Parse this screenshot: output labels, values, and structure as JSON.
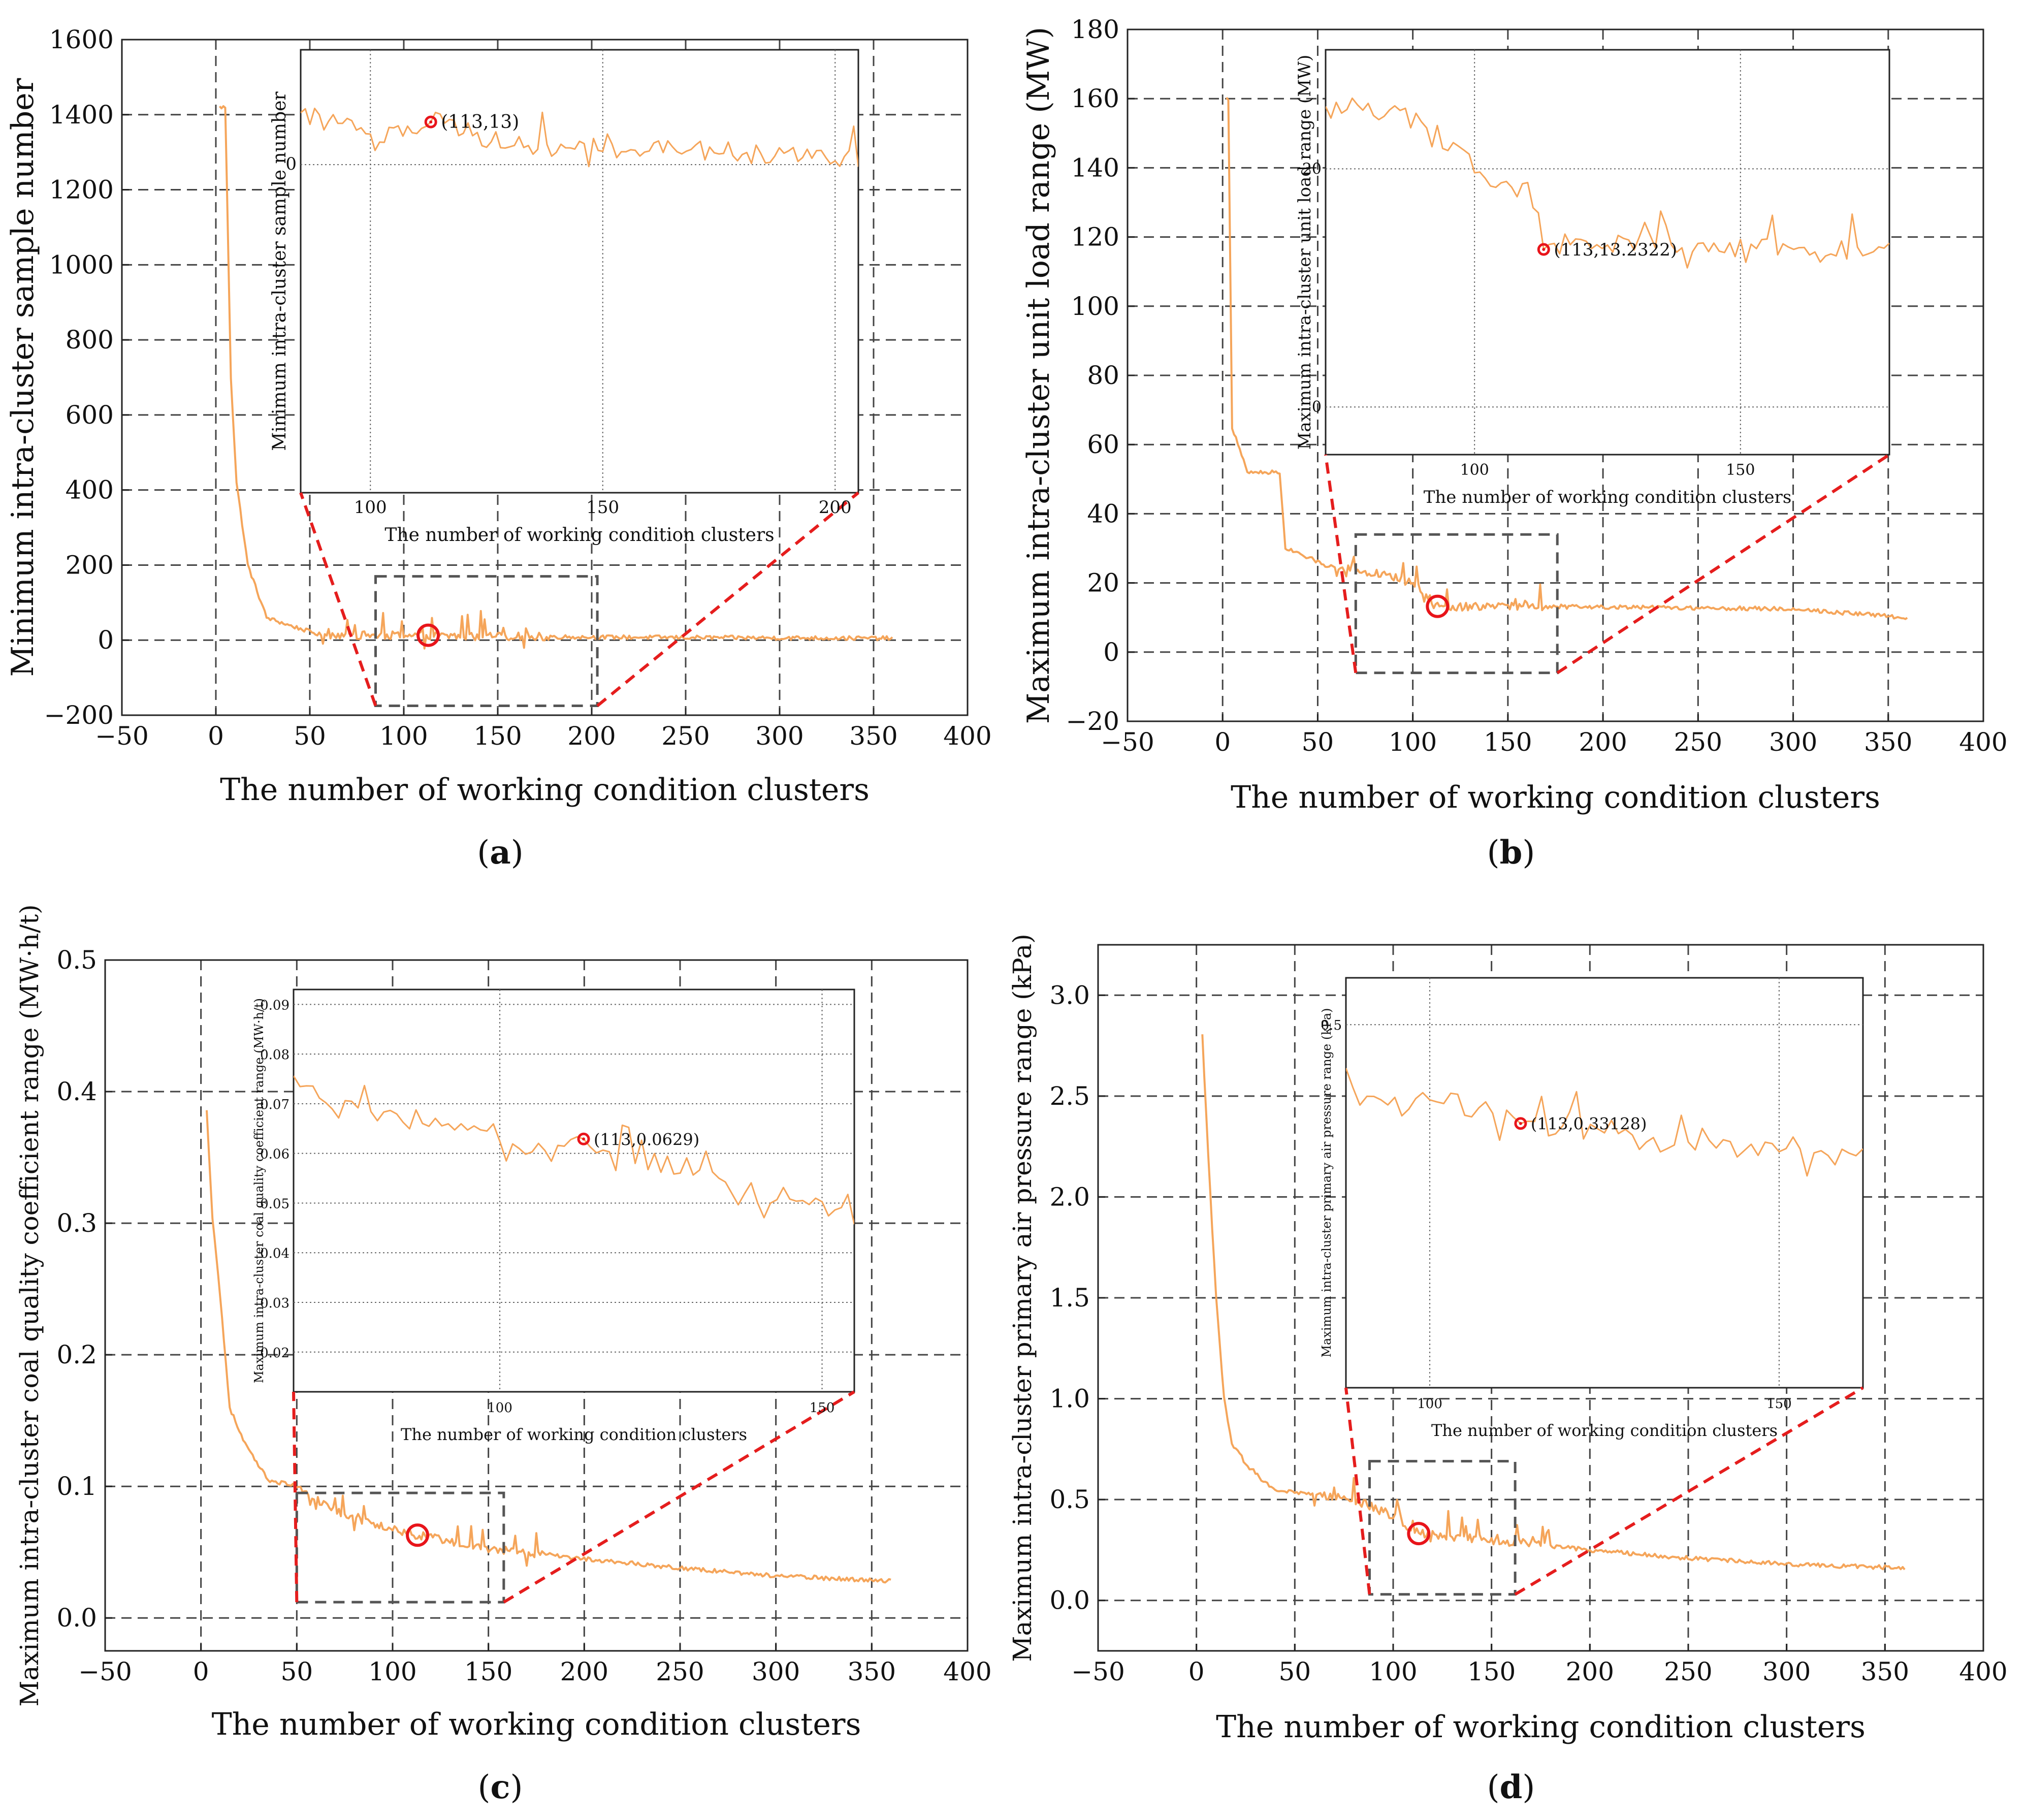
{
  "figure": {
    "panel_tags": [
      {
        "open": "(",
        "letter": "a",
        "close": ")"
      },
      {
        "open": "(",
        "letter": "b",
        "close": ")"
      },
      {
        "open": "(",
        "letter": "c",
        "close": ")"
      },
      {
        "open": "(",
        "letter": "d",
        "close": ")"
      }
    ]
  },
  "colors": {
    "series": "#f5a55a",
    "highlight": "#e8141a",
    "zoom_box": "#555555",
    "connector": "#e51d1d",
    "grid": "#444444"
  },
  "chart_data": [
    {
      "type": "line",
      "panel": "a",
      "title": "",
      "xlabel": "The number of working condition clusters",
      "ylabel": "Minimum intra-cluster sample number",
      "xlim": [
        -50,
        400
      ],
      "ylim": [
        -200,
        1600
      ],
      "xticks": [
        -50,
        0,
        50,
        100,
        150,
        200,
        250,
        300,
        350,
        400
      ],
      "yticks": [
        -200,
        0,
        200,
        400,
        600,
        800,
        1000,
        1200,
        1400,
        1600
      ],
      "x_range": [
        2,
        360
      ],
      "curve": {
        "start": 1430,
        "end": 5,
        "plateaus": [
          [
            5,
            1420
          ],
          [
            8,
            700
          ],
          [
            11,
            420
          ],
          [
            17,
            200
          ],
          [
            27,
            60
          ],
          [
            40,
            38
          ],
          [
            55,
            15
          ],
          [
            80,
            13
          ],
          [
            200,
            8
          ],
          [
            300,
            6
          ],
          [
            360,
            5
          ]
        ]
      },
      "highlight": {
        "x": 113,
        "y": 13,
        "label": "(113,13)"
      },
      "zoom_box": {
        "x": [
          85,
          203
        ],
        "y": [
          -175,
          170
        ]
      },
      "inset": {
        "xlabel": "The number of working condition clusters",
        "ylabel": "Minimum intra-cluster sample number",
        "xlim": [
          85,
          205
        ],
        "ylim": [
          -100,
          35
        ],
        "xticks": [
          100,
          150,
          200
        ],
        "yticks": [
          0
        ],
        "series": [
          [
            85,
            15
          ],
          [
            95,
            12
          ],
          [
            100,
            6
          ],
          [
            110,
            12
          ],
          [
            113,
            13
          ],
          [
            120,
            10
          ],
          [
            130,
            6
          ],
          [
            150,
            5
          ],
          [
            170,
            4
          ],
          [
            200,
            3
          ],
          [
            205,
            3
          ]
        ]
      }
    },
    {
      "type": "line",
      "panel": "b",
      "title": "",
      "xlabel": "The number of working condition clusters",
      "ylabel": "Maximum intra-cluster unit load range (MW)",
      "xlim": [
        -50,
        400
      ],
      "ylim": [
        -20,
        180
      ],
      "xticks": [
        -50,
        0,
        50,
        100,
        150,
        200,
        250,
        300,
        350,
        400
      ],
      "yticks": [
        -20,
        0,
        20,
        40,
        60,
        80,
        100,
        120,
        140,
        160,
        180
      ],
      "x_range": [
        2,
        360
      ],
      "curve": {
        "start": 160,
        "end": 10,
        "plateaus": [
          [
            3,
            160
          ],
          [
            5,
            65
          ],
          [
            13,
            52
          ],
          [
            30,
            52
          ],
          [
            33,
            30
          ],
          [
            55,
            25
          ],
          [
            80,
            23
          ],
          [
            100,
            20
          ],
          [
            113,
            13.2322
          ],
          [
            200,
            13
          ],
          [
            300,
            12.5
          ],
          [
            360,
            10
          ]
        ]
      },
      "highlight": {
        "x": 113,
        "y": 13.2322,
        "label": "(113,13.2322)"
      },
      "zoom_box": {
        "x": [
          70,
          176
        ],
        "y": [
          -6,
          34
        ]
      },
      "inset": {
        "xlabel": "The number of working condition clusters",
        "ylabel": "Maximum intra-cluster unit load range (MW)",
        "xlim": [
          72,
          178
        ],
        "ylim": [
          -4,
          30
        ],
        "xticks": [
          100,
          150
        ],
        "yticks": [
          0,
          20
        ],
        "series": [
          [
            72,
            25
          ],
          [
            80,
            25
          ],
          [
            90,
            24
          ],
          [
            100,
            20
          ],
          [
            110,
            18
          ],
          [
            113,
            13.2322
          ],
          [
            120,
            14
          ],
          [
            140,
            13.5
          ],
          [
            160,
            13.3
          ],
          [
            178,
            13.2
          ]
        ]
      }
    },
    {
      "type": "line",
      "panel": "c",
      "title": "",
      "xlabel": "The number of working condition clusters",
      "ylabel": "Maximum intra-cluster coal quality coefficient range (MW·h/t)",
      "xlim": [
        -50,
        400
      ],
      "ylim": [
        -0.025,
        0.5
      ],
      "xticks": [
        -50,
        0,
        50,
        100,
        150,
        200,
        250,
        300,
        350,
        400
      ],
      "yticks": [
        0.0,
        0.1,
        0.2,
        0.3,
        0.4,
        0.5
      ],
      "x_range": [
        3,
        360
      ],
      "curve": {
        "start": 0.385,
        "end": 0.028,
        "plateaus": [
          [
            3,
            0.385
          ],
          [
            6,
            0.305
          ],
          [
            10,
            0.245
          ],
          [
            15,
            0.16
          ],
          [
            22,
            0.135
          ],
          [
            28,
            0.12
          ],
          [
            35,
            0.105
          ],
          [
            50,
            0.1
          ],
          [
            60,
            0.09
          ],
          [
            80,
            0.075
          ],
          [
            113,
            0.0629
          ],
          [
            150,
            0.053
          ],
          [
            200,
            0.045
          ],
          [
            250,
            0.038
          ],
          [
            300,
            0.032
          ],
          [
            360,
            0.028
          ]
        ]
      },
      "highlight": {
        "x": 113,
        "y": 0.0629,
        "label": "(113,0.0629)"
      },
      "zoom_box": {
        "x": [
          50,
          158
        ],
        "y": [
          0.012,
          0.095
        ]
      },
      "inset": {
        "xlabel": "The number of working condition clusters",
        "ylabel": "Maximum intra-cluster coal quality coefficient range (MW·h/t)",
        "xlim": [
          68,
          155
        ],
        "ylim": [
          0.012,
          0.093
        ],
        "xticks": [
          100,
          150
        ],
        "yticks": [
          0.02,
          0.03,
          0.04,
          0.05,
          0.06,
          0.07,
          0.08,
          0.09
        ],
        "series": [
          [
            68,
            0.075
          ],
          [
            75,
            0.07
          ],
          [
            85,
            0.067
          ],
          [
            95,
            0.066
          ],
          [
            100,
            0.061
          ],
          [
            110,
            0.06
          ],
          [
            113,
            0.0629
          ],
          [
            120,
            0.059
          ],
          [
            130,
            0.056
          ],
          [
            140,
            0.052
          ],
          [
            150,
            0.05
          ],
          [
            155,
            0.047
          ]
        ]
      }
    },
    {
      "type": "line",
      "panel": "d",
      "title": "",
      "xlabel": "The number of working condition clusters",
      "ylabel": "Maximum intra-cluster primary air pressure range (kPa)",
      "xlim": [
        -50,
        400
      ],
      "ylim": [
        -0.25,
        3.25
      ],
      "xticks": [
        -50,
        0,
        50,
        100,
        150,
        200,
        250,
        300,
        350,
        400
      ],
      "yticks": [
        0.0,
        0.5,
        1.0,
        1.5,
        2.0,
        2.5,
        3.0
      ],
      "x_range": [
        3,
        360
      ],
      "curve": {
        "start": 2.8,
        "end": 0.16,
        "plateaus": [
          [
            3,
            2.8
          ],
          [
            6,
            2.2
          ],
          [
            10,
            1.5
          ],
          [
            14,
            1.0
          ],
          [
            18,
            0.78
          ],
          [
            25,
            0.68
          ],
          [
            33,
            0.6
          ],
          [
            40,
            0.55
          ],
          [
            60,
            0.52
          ],
          [
            80,
            0.5
          ],
          [
            100,
            0.42
          ],
          [
            113,
            0.33128
          ],
          [
            150,
            0.3
          ],
          [
            200,
            0.25
          ],
          [
            250,
            0.21
          ],
          [
            300,
            0.18
          ],
          [
            360,
            0.16
          ]
        ]
      },
      "highlight": {
        "x": 113,
        "y": 0.33128,
        "label": "(113,0.33128)"
      },
      "zoom_box": {
        "x": [
          88,
          162
        ],
        "y": [
          0.03,
          0.69
        ]
      },
      "inset": {
        "xlabel": "The number of working condition clusters",
        "ylabel": "Maximum intra-cluster primary air pressure range (kPa)",
        "xlim": [
          88,
          162
        ],
        "ylim": [
          -0.12,
          0.58
        ],
        "xticks": [
          100,
          150
        ],
        "yticks": [
          0.5
        ],
        "series": [
          [
            88,
            0.42
          ],
          [
            95,
            0.36
          ],
          [
            100,
            0.38
          ],
          [
            105,
            0.36
          ],
          [
            110,
            0.34
          ],
          [
            113,
            0.33128
          ],
          [
            120,
            0.32
          ],
          [
            130,
            0.3
          ],
          [
            140,
            0.29
          ],
          [
            150,
            0.28
          ],
          [
            162,
            0.27
          ]
        ]
      }
    }
  ]
}
